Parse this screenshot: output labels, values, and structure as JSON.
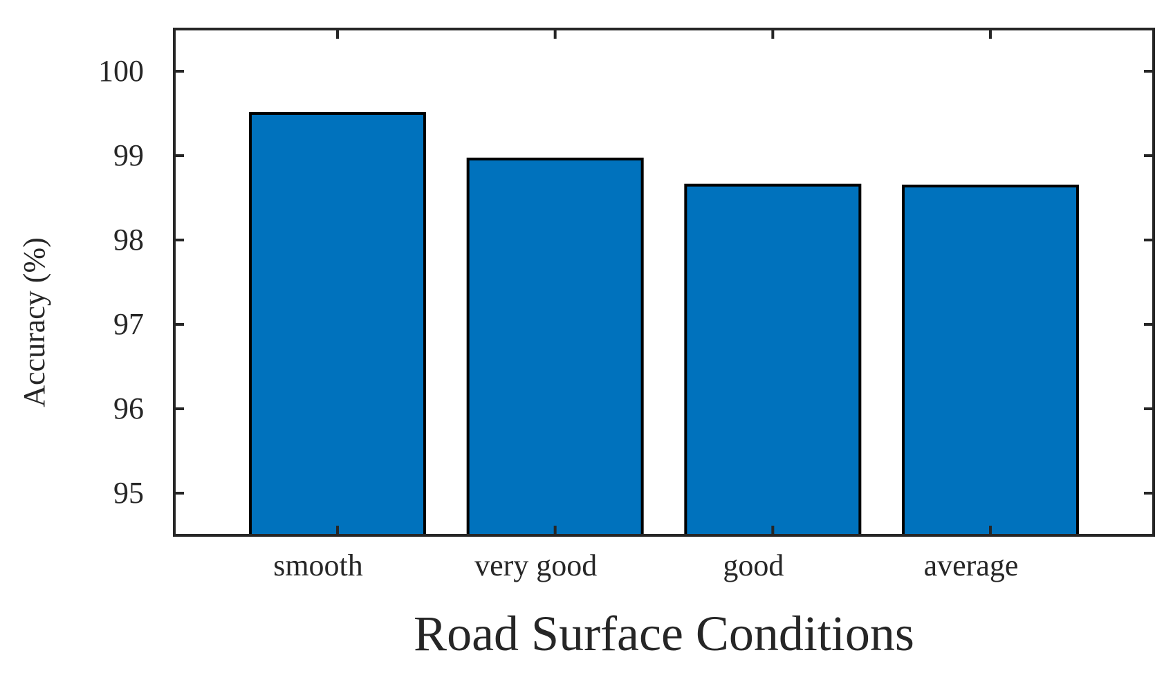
{
  "chart_data": {
    "type": "bar",
    "title": "",
    "xlabel": "Road Surface Conditions",
    "ylabel": "Accuracy (%)",
    "categories": [
      "smooth",
      "very good",
      "good",
      "average"
    ],
    "values": [
      99.5,
      98.96,
      98.65,
      98.64
    ],
    "ylim": [
      94.5,
      100.5
    ],
    "yticks": [
      95,
      96,
      97,
      98,
      99,
      100
    ],
    "ytick_labels": [
      "95",
      "96",
      "97",
      "98",
      "99",
      "100"
    ],
    "grid": false,
    "legend": "none",
    "bar_color": "#0072BD",
    "edge_color": "#000000",
    "axis_color": "#262626"
  }
}
